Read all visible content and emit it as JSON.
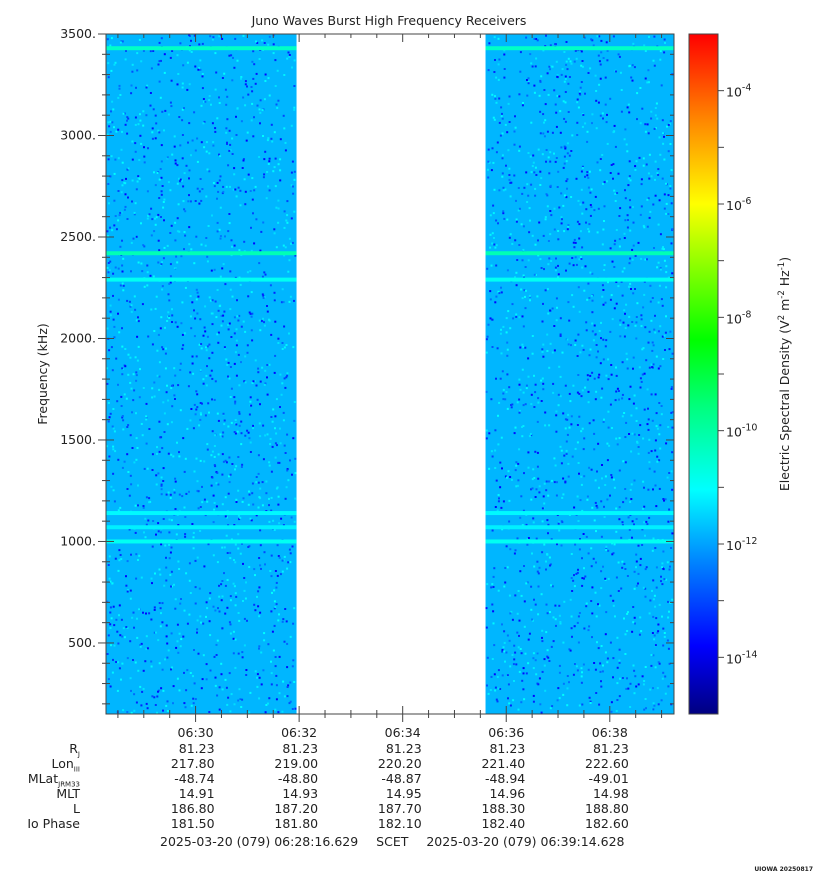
{
  "chart_data": {
    "type": "heatmap",
    "title": "Juno Waves Burst High Frequency Receivers",
    "xlabel": "",
    "ylabel": "Frequency (kHz)",
    "ylim": [
      150,
      3500
    ],
    "y_ticks": [
      500,
      1000,
      1500,
      2000,
      2500,
      3000,
      3500
    ],
    "y_tick_labels": [
      "500.",
      "1000.",
      "1500.",
      "2000.",
      "2500.",
      "3000.",
      "3500."
    ],
    "x_range_minutes": [
      388.27,
      399.24
    ],
    "x_ticks": [
      390,
      392,
      394,
      396,
      398
    ],
    "x_tick_labels": [
      "06:30",
      "06:32",
      "06:34",
      "06:36",
      "06:38"
    ],
    "data_gap": {
      "start": 391.95,
      "end": 395.6
    },
    "background_level_log10": -11.8,
    "bands": [
      {
        "freq_khz": 3430,
        "level_log10": -10.4
      },
      {
        "freq_khz": 2420,
        "level_log10": -10.2
      },
      {
        "freq_khz": 2290,
        "level_log10": -10.9
      },
      {
        "freq_khz": 1140,
        "level_log10": -11.1
      },
      {
        "freq_khz": 1070,
        "level_log10": -11.2
      },
      {
        "freq_khz": 1000,
        "level_log10": -10.9
      }
    ],
    "colorbar": {
      "label": "Electric Spectral Density",
      "units_prefix": "(V",
      "units_mid": " m",
      "units_tail": " Hz",
      "units_close": ")",
      "exp_2": "2",
      "exp_m2": "-2",
      "exp_m1": "-1",
      "range_log10": [
        -15,
        -3
      ],
      "tick_exponents": [
        -4,
        -6,
        -8,
        -10,
        -12,
        -14
      ],
      "tick_labels": [
        "-4",
        "-6",
        "-8",
        "-10",
        "-12",
        "-14"
      ],
      "tick_base": "10",
      "colors": [
        "#000080",
        "#0000ff",
        "#0080ff",
        "#00ffff",
        "#00ff80",
        "#00ff00",
        "#80ff00",
        "#ffff00",
        "#ff8000",
        "#ff0000"
      ]
    }
  },
  "ephemeris": {
    "labels": {
      "rj": "R",
      "rj_sub": "J",
      "lon": "Lon",
      "lon_sub": "III",
      "mlat": "MLat",
      "mlat_sub": "JRM33",
      "mlt": "MLT",
      "l": "L",
      "io": "Io Phase"
    },
    "columns": [
      {
        "rj": "81.23",
        "lon": "217.80",
        "mlat": "-48.74",
        "mlt": "14.91",
        "l": "186.80",
        "io": "181.50"
      },
      {
        "rj": "81.23",
        "lon": "219.00",
        "mlat": "-48.80",
        "mlt": "14.93",
        "l": "187.20",
        "io": "181.80"
      },
      {
        "rj": "81.23",
        "lon": "220.20",
        "mlat": "-48.87",
        "mlt": "14.95",
        "l": "187.70",
        "io": "182.10"
      },
      {
        "rj": "81.23",
        "lon": "221.40",
        "mlat": "-48.94",
        "mlt": "14.96",
        "l": "188.30",
        "io": "182.40"
      },
      {
        "rj": "81.23",
        "lon": "222.60",
        "mlat": "-49.01",
        "mlt": "14.98",
        "l": "188.80",
        "io": "182.60"
      }
    ]
  },
  "footer": {
    "start": "2025-03-20 (079) 06:28:16.629",
    "scet": "SCET",
    "end": "2025-03-20 (079) 06:39:14.628"
  },
  "stamp": "UIOWA 20250817"
}
